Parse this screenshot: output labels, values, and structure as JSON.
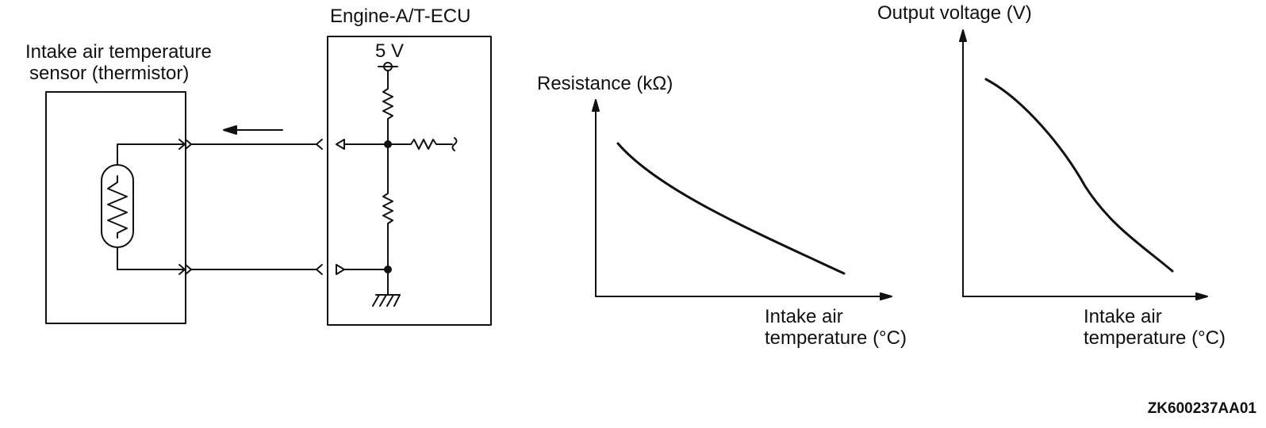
{
  "circuit": {
    "sensor_label_line1": "Intake air temperature",
    "sensor_label_line2": "sensor (thermistor)",
    "ecu_label": "Engine-A/T-ECU",
    "supply_label": "5 V"
  },
  "graph_resistance": {
    "y_label": "Resistance (kΩ)",
    "x_label_line1": "Intake air",
    "x_label_line2": "temperature (°C)"
  },
  "graph_voltage": {
    "y_label": "Output voltage (V)",
    "x_label_line1": "Intake air",
    "x_label_line2": "temperature (°C)"
  },
  "figure_code": "ZK600237AA01"
}
